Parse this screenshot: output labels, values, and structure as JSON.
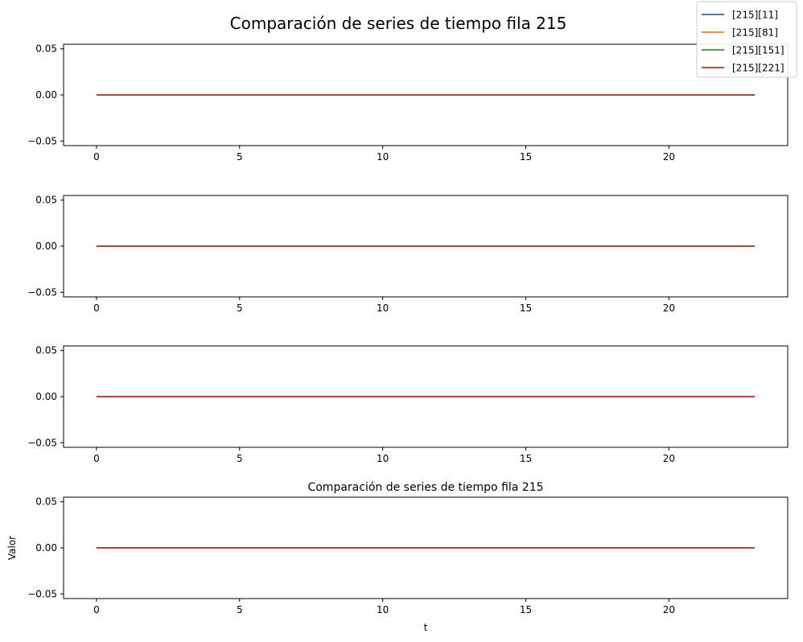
{
  "figure": {
    "suptitle": "Comparación de series de tiempo fila 215",
    "legend": {
      "placement": "top-right",
      "entries": [
        {
          "label": "[215][11]",
          "color": "#1f77b4"
        },
        {
          "label": "[215][81]",
          "color": "#ff7f0e"
        },
        {
          "label": "[215][151]",
          "color": "#2ca02c"
        },
        {
          "label": "[215][221]",
          "color": "#d62728"
        }
      ]
    }
  },
  "chart_data": [
    {
      "type": "line",
      "title": "",
      "xlabel": "",
      "ylabel": "",
      "x": [
        0,
        1,
        2,
        3,
        4,
        5,
        6,
        7,
        8,
        9,
        10,
        11,
        12,
        13,
        14,
        15,
        16,
        17,
        18,
        19,
        20,
        21,
        22,
        23
      ],
      "xlim": [
        -1.15,
        24.15
      ],
      "ylim": [
        -0.055,
        0.055
      ],
      "xticks": [
        0,
        5,
        10,
        15,
        20
      ],
      "yticks": [
        "0.05",
        "0.00",
        "−0.05"
      ],
      "grid": false,
      "series": [
        {
          "name": "[215][11]",
          "color": "#1f77b4",
          "values": [
            0,
            0,
            0,
            0,
            0,
            0,
            0,
            0,
            0,
            0,
            0,
            0,
            0,
            0,
            0,
            0,
            0,
            0,
            0,
            0,
            0,
            0,
            0,
            0
          ]
        },
        {
          "name": "[215][81]",
          "color": "#ff7f0e",
          "values": [
            0,
            0,
            0,
            0,
            0,
            0,
            0,
            0,
            0,
            0,
            0,
            0,
            0,
            0,
            0,
            0,
            0,
            0,
            0,
            0,
            0,
            0,
            0,
            0
          ]
        },
        {
          "name": "[215][151]",
          "color": "#2ca02c",
          "values": [
            0,
            0,
            0,
            0,
            0,
            0,
            0,
            0,
            0,
            0,
            0,
            0,
            0,
            0,
            0,
            0,
            0,
            0,
            0,
            0,
            0,
            0,
            0,
            0
          ]
        },
        {
          "name": "[215][221]",
          "color": "#d62728",
          "values": [
            0,
            0,
            0,
            0,
            0,
            0,
            0,
            0,
            0,
            0,
            0,
            0,
            0,
            0,
            0,
            0,
            0,
            0,
            0,
            0,
            0,
            0,
            0,
            0
          ]
        }
      ]
    },
    {
      "type": "line",
      "title": "",
      "xlabel": "",
      "ylabel": "",
      "x": [
        0,
        1,
        2,
        3,
        4,
        5,
        6,
        7,
        8,
        9,
        10,
        11,
        12,
        13,
        14,
        15,
        16,
        17,
        18,
        19,
        20,
        21,
        22,
        23
      ],
      "xlim": [
        -1.15,
        24.15
      ],
      "ylim": [
        -0.055,
        0.055
      ],
      "xticks": [
        0,
        5,
        10,
        15,
        20
      ],
      "yticks": [
        "0.05",
        "0.00",
        "−0.05"
      ],
      "grid": false,
      "series": [
        {
          "name": "[215][11]",
          "color": "#1f77b4",
          "values": [
            0,
            0,
            0,
            0,
            0,
            0,
            0,
            0,
            0,
            0,
            0,
            0,
            0,
            0,
            0,
            0,
            0,
            0,
            0,
            0,
            0,
            0,
            0,
            0
          ]
        },
        {
          "name": "[215][81]",
          "color": "#ff7f0e",
          "values": [
            0,
            0,
            0,
            0,
            0,
            0,
            0,
            0,
            0,
            0,
            0,
            0,
            0,
            0,
            0,
            0,
            0,
            0,
            0,
            0,
            0,
            0,
            0,
            0
          ]
        },
        {
          "name": "[215][151]",
          "color": "#2ca02c",
          "values": [
            0,
            0,
            0,
            0,
            0,
            0,
            0,
            0,
            0,
            0,
            0,
            0,
            0,
            0,
            0,
            0,
            0,
            0,
            0,
            0,
            0,
            0,
            0,
            0
          ]
        },
        {
          "name": "[215][221]",
          "color": "#d62728",
          "values": [
            0,
            0,
            0,
            0,
            0,
            0,
            0,
            0,
            0,
            0,
            0,
            0,
            0,
            0,
            0,
            0,
            0,
            0,
            0,
            0,
            0,
            0,
            0,
            0
          ]
        }
      ]
    },
    {
      "type": "line",
      "title": "",
      "xlabel": "",
      "ylabel": "",
      "x": [
        0,
        1,
        2,
        3,
        4,
        5,
        6,
        7,
        8,
        9,
        10,
        11,
        12,
        13,
        14,
        15,
        16,
        17,
        18,
        19,
        20,
        21,
        22,
        23
      ],
      "xlim": [
        -1.15,
        24.15
      ],
      "ylim": [
        -0.055,
        0.055
      ],
      "xticks": [
        0,
        5,
        10,
        15,
        20
      ],
      "yticks": [
        "0.05",
        "0.00",
        "−0.05"
      ],
      "grid": false,
      "series": [
        {
          "name": "[215][11]",
          "color": "#1f77b4",
          "values": [
            0,
            0,
            0,
            0,
            0,
            0,
            0,
            0,
            0,
            0,
            0,
            0,
            0,
            0,
            0,
            0,
            0,
            0,
            0,
            0,
            0,
            0,
            0,
            0
          ]
        },
        {
          "name": "[215][81]",
          "color": "#ff7f0e",
          "values": [
            0,
            0,
            0,
            0,
            0,
            0,
            0,
            0,
            0,
            0,
            0,
            0,
            0,
            0,
            0,
            0,
            0,
            0,
            0,
            0,
            0,
            0,
            0,
            0
          ]
        },
        {
          "name": "[215][151]",
          "color": "#2ca02c",
          "values": [
            0,
            0,
            0,
            0,
            0,
            0,
            0,
            0,
            0,
            0,
            0,
            0,
            0,
            0,
            0,
            0,
            0,
            0,
            0,
            0,
            0,
            0,
            0,
            0
          ]
        },
        {
          "name": "[215][221]",
          "color": "#d62728",
          "values": [
            0,
            0,
            0,
            0,
            0,
            0,
            0,
            0,
            0,
            0,
            0,
            0,
            0,
            0,
            0,
            0,
            0,
            0,
            0,
            0,
            0,
            0,
            0,
            0
          ]
        }
      ]
    },
    {
      "type": "line",
      "title": "Comparación de series de tiempo fila 215",
      "xlabel": "t",
      "ylabel": "Valor",
      "x": [
        0,
        1,
        2,
        3,
        4,
        5,
        6,
        7,
        8,
        9,
        10,
        11,
        12,
        13,
        14,
        15,
        16,
        17,
        18,
        19,
        20,
        21,
        22,
        23
      ],
      "xlim": [
        -1.15,
        24.15
      ],
      "ylim": [
        -0.055,
        0.055
      ],
      "xticks": [
        0,
        5,
        10,
        15,
        20
      ],
      "yticks": [
        "0.05",
        "0.00",
        "−0.05"
      ],
      "grid": false,
      "series": [
        {
          "name": "[215][11]",
          "color": "#1f77b4",
          "values": [
            0,
            0,
            0,
            0,
            0,
            0,
            0,
            0,
            0,
            0,
            0,
            0,
            0,
            0,
            0,
            0,
            0,
            0,
            0,
            0,
            0,
            0,
            0,
            0
          ]
        },
        {
          "name": "[215][81]",
          "color": "#ff7f0e",
          "values": [
            0,
            0,
            0,
            0,
            0,
            0,
            0,
            0,
            0,
            0,
            0,
            0,
            0,
            0,
            0,
            0,
            0,
            0,
            0,
            0,
            0,
            0,
            0,
            0
          ]
        },
        {
          "name": "[215][151]",
          "color": "#2ca02c",
          "values": [
            0,
            0,
            0,
            0,
            0,
            0,
            0,
            0,
            0,
            0,
            0,
            0,
            0,
            0,
            0,
            0,
            0,
            0,
            0,
            0,
            0,
            0,
            0,
            0
          ]
        },
        {
          "name": "[215][221]",
          "color": "#d62728",
          "values": [
            0,
            0,
            0,
            0,
            0,
            0,
            0,
            0,
            0,
            0,
            0,
            0,
            0,
            0,
            0,
            0,
            0,
            0,
            0,
            0,
            0,
            0,
            0,
            0
          ]
        }
      ]
    }
  ]
}
